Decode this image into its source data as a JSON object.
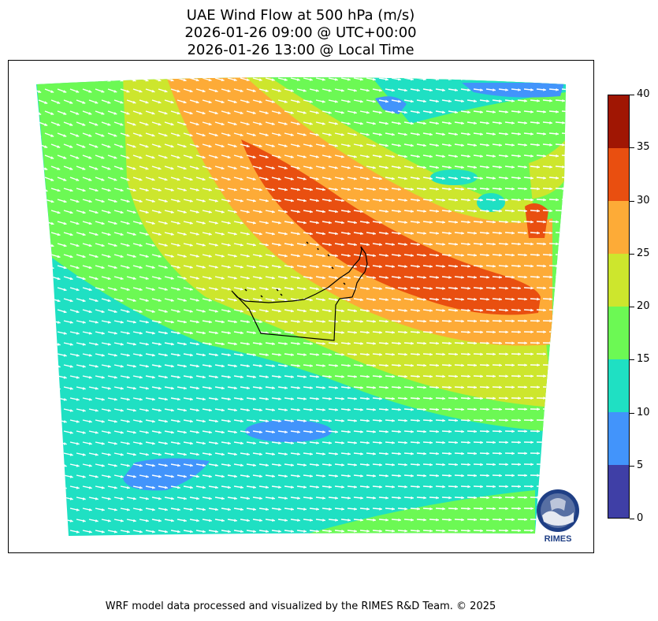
{
  "title": {
    "line1": "UAE Wind Flow at 500 hPa (m/s)",
    "line2": "2026-01-26 09:00 @ UTC+00:00",
    "line3": "2026-01-26 13:00 @ Local Time"
  },
  "colorbar": {
    "levels": [
      {
        "from": 0,
        "to": 5,
        "color": "#3f3fa6"
      },
      {
        "from": 5,
        "to": 10,
        "color": "#4294fb"
      },
      {
        "from": 10,
        "to": 15,
        "color": "#1fe0c3"
      },
      {
        "from": 15,
        "to": 20,
        "color": "#6cf954"
      },
      {
        "from": 20,
        "to": 25,
        "color": "#cde62d"
      },
      {
        "from": 25,
        "to": 30,
        "color": "#fdab37"
      },
      {
        "from": 30,
        "to": 35,
        "color": "#e94f10"
      },
      {
        "from": 35,
        "to": 40,
        "color": "#a01603"
      }
    ],
    "tick_labels": [
      "0",
      "5",
      "10",
      "15",
      "20",
      "25",
      "30",
      "35",
      "40"
    ]
  },
  "logo": {
    "text": "RIMES"
  },
  "footer": "WRF model data processed and visualized by the RIMES R&D Team. © 2025"
}
